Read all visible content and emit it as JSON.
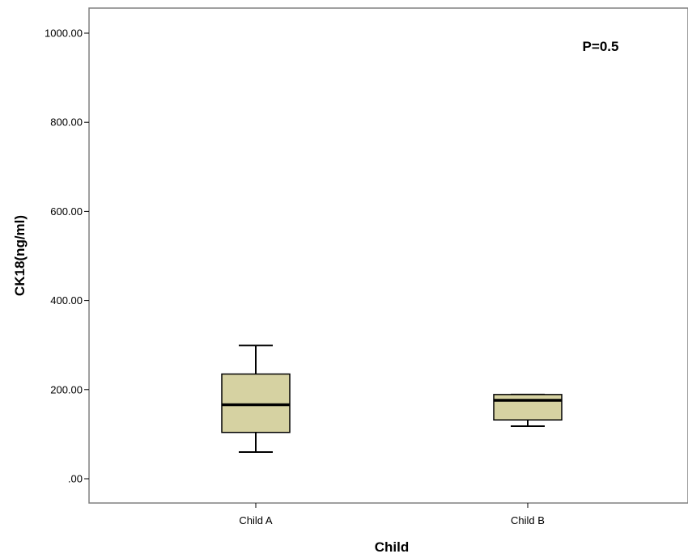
{
  "chart_data": {
    "type": "box",
    "title": "",
    "xlabel": "Child",
    "ylabel": "CK18(ng/ml)",
    "ylim": [
      -55,
      1055
    ],
    "yticks": [
      {
        "value": 0,
        "label": ".00"
      },
      {
        "value": 200,
        "label": "200.00"
      },
      {
        "value": 400,
        "label": "400.00"
      },
      {
        "value": 600,
        "label": "600.00"
      },
      {
        "value": 800,
        "label": "800.00"
      },
      {
        "value": 1000,
        "label": "1000.00"
      }
    ],
    "categories": [
      "Child A",
      "Child B"
    ],
    "boxes": [
      {
        "category": "Child A",
        "min": 60,
        "q1": 104,
        "median": 166,
        "q3": 235,
        "max": 299
      },
      {
        "category": "Child B",
        "min": 118,
        "q1": 132,
        "median": 176,
        "q3": 189,
        "max": 189
      }
    ],
    "annotation": "P=0.5",
    "box_fill": "#d6d2a2",
    "box_stroke": "#000000",
    "frame_color": "#808080",
    "grid": false
  }
}
